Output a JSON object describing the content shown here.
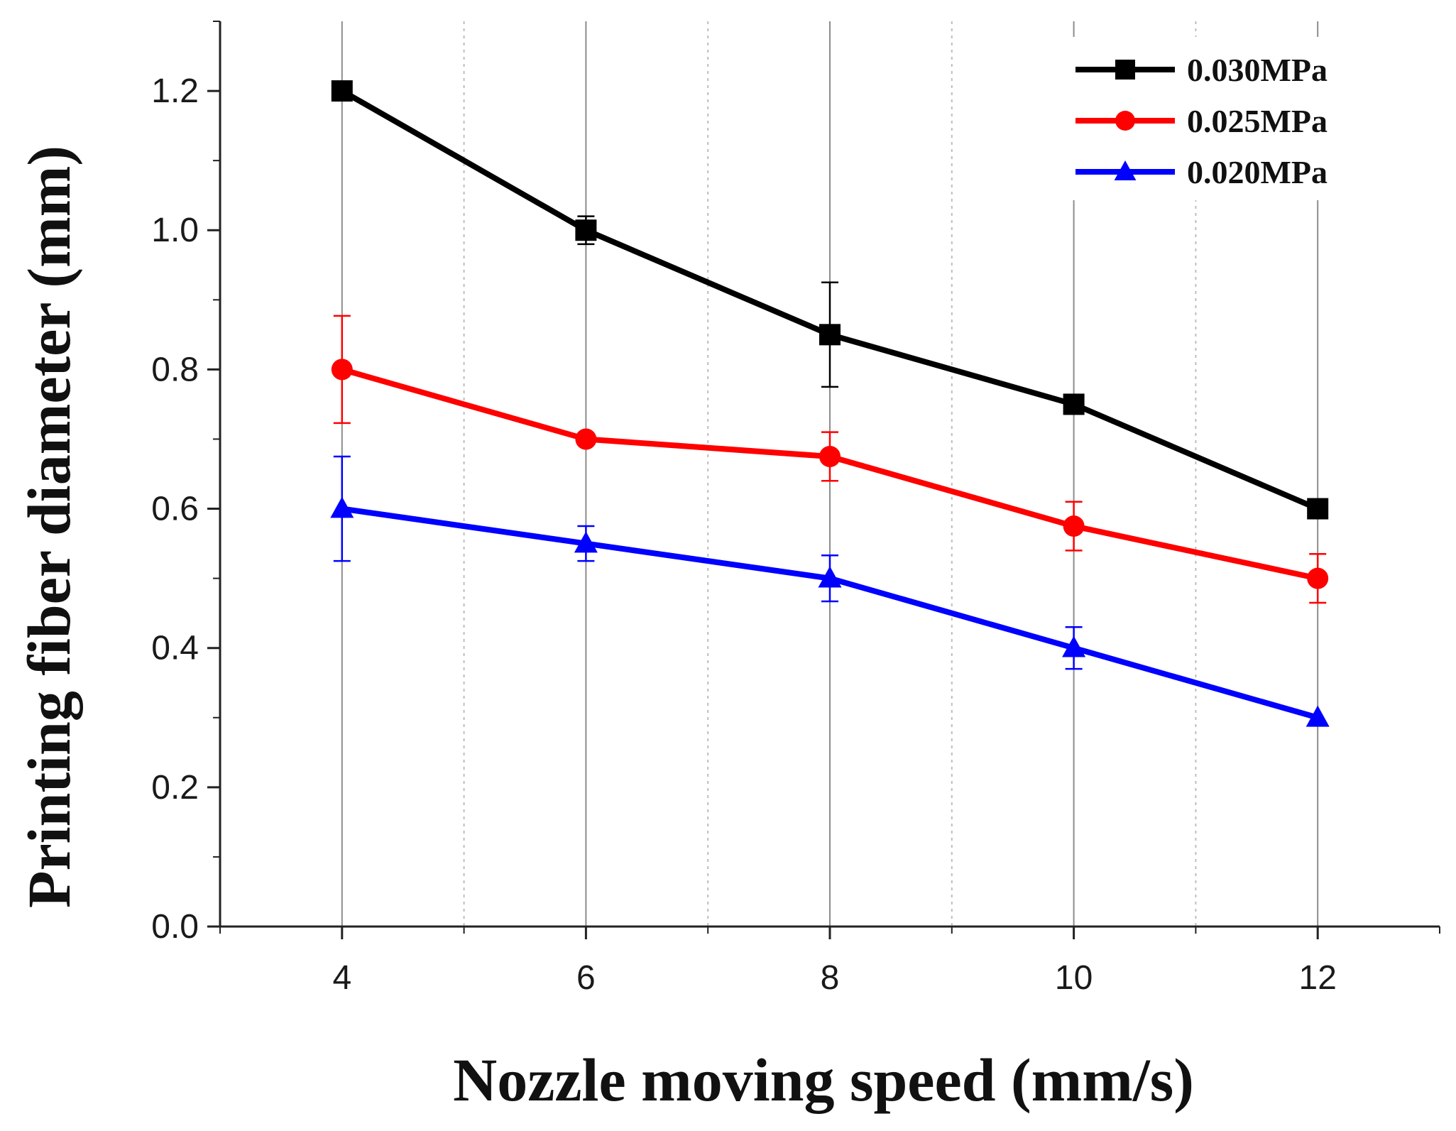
{
  "chart_data": {
    "type": "line",
    "xlabel": "Nozzle moving speed (mm/s)",
    "ylabel": "Printing fiber diameter (mm)",
    "xlim": [
      3,
      13
    ],
    "ylim": [
      0,
      1.3
    ],
    "x_ticks": [
      4,
      6,
      8,
      10,
      12
    ],
    "x_tick_labels": [
      "4",
      "6",
      "8",
      "10",
      "12"
    ],
    "y_ticks": [
      0,
      0.2,
      0.4,
      0.6,
      0.8,
      1.0,
      1.2
    ],
    "y_tick_labels": [
      "0.0",
      "0.2",
      "0.4",
      "0.6",
      "0.8",
      "1.0",
      "1.2"
    ],
    "grid": "vertical",
    "legend_position": "top-right",
    "x": [
      4,
      6,
      8,
      10,
      12
    ],
    "series": [
      {
        "name": "0.030MPa",
        "color": "#000000",
        "marker": "square",
        "values": [
          1.2,
          1.0,
          0.85,
          0.75,
          0.6
        ],
        "errors": [
          0.0,
          0.02,
          0.075,
          0.012,
          0.0
        ]
      },
      {
        "name": "0.025MPa",
        "color": "#ff0000",
        "marker": "circle",
        "values": [
          0.8,
          0.7,
          0.675,
          0.575,
          0.5
        ],
        "errors": [
          0.077,
          0.0,
          0.035,
          0.035,
          0.035
        ]
      },
      {
        "name": "0.020MPa",
        "color": "#0000ff",
        "marker": "triangle",
        "values": [
          0.6,
          0.55,
          0.5,
          0.4,
          0.3
        ],
        "errors": [
          0.075,
          0.025,
          0.033,
          0.03,
          0.0
        ]
      }
    ]
  }
}
